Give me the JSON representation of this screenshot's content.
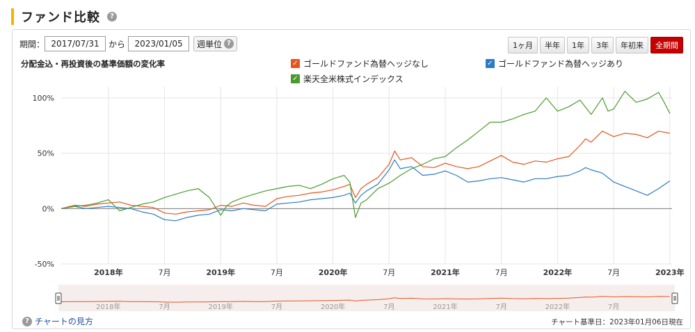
{
  "page": {
    "title": "ファンド比較",
    "help_glyph": "?"
  },
  "controls": {
    "period_label": "期間：",
    "start_date": "2017/07/31",
    "separator": "から",
    "end_date": "2023/01/05",
    "unit_button": "週単位",
    "ranges": [
      {
        "label": "1ヶ月",
        "active": false
      },
      {
        "label": "半年",
        "active": false
      },
      {
        "label": "1年",
        "active": false
      },
      {
        "label": "3年",
        "active": false
      },
      {
        "label": "年初来",
        "active": false
      },
      {
        "label": "全期間",
        "active": true
      }
    ]
  },
  "footer": {
    "how_to_read": "チャートの見方",
    "base_date": "チャート基準日：2023年01月06日現在"
  },
  "colors": {
    "gold_unhedged": "#e8541e",
    "gold_hedged": "#2b7bc5",
    "us_index": "#4a9a2c",
    "active_button": "#c40000",
    "title_accent": "#f5b400"
  },
  "chart_data": {
    "type": "line",
    "title": "分配金込・再投資後の基準価額の変化率",
    "x_unit": "year-fraction",
    "xlim": [
      2017.58,
      2023.02
    ],
    "ylim": [
      -50,
      110
    ],
    "y_ticks": [
      100,
      50,
      0,
      -50
    ],
    "y_tick_labels": [
      "100%",
      "50%",
      "0%",
      "-50%"
    ],
    "x_ticks": [
      {
        "x": 2018.0,
        "label": "2018年",
        "major": true
      },
      {
        "x": 2018.5,
        "label": "7月",
        "major": false
      },
      {
        "x": 2019.0,
        "label": "2019年",
        "major": true
      },
      {
        "x": 2019.5,
        "label": "7月",
        "major": false
      },
      {
        "x": 2020.0,
        "label": "2020年",
        "major": true
      },
      {
        "x": 2020.5,
        "label": "7月",
        "major": false
      },
      {
        "x": 2021.0,
        "label": "2021年",
        "major": true
      },
      {
        "x": 2021.5,
        "label": "7月",
        "major": false
      },
      {
        "x": 2022.0,
        "label": "2022年",
        "major": true
      },
      {
        "x": 2022.5,
        "label": "7月",
        "major": false
      },
      {
        "x": 2023.0,
        "label": "2023年",
        "major": true
      }
    ],
    "grid": true,
    "legend_position": "top",
    "series": [
      {
        "name": "ゴールドファンド為替ヘッジなし",
        "color": "#e8541e",
        "x": [
          2017.58,
          2017.7,
          2017.8,
          2017.9,
          2018.0,
          2018.1,
          2018.2,
          2018.3,
          2018.4,
          2018.5,
          2018.6,
          2018.7,
          2018.8,
          2018.9,
          2019.0,
          2019.1,
          2019.2,
          2019.3,
          2019.4,
          2019.5,
          2019.6,
          2019.7,
          2019.8,
          2019.9,
          2020.0,
          2020.1,
          2020.15,
          2020.2,
          2020.25,
          2020.3,
          2020.4,
          2020.5,
          2020.55,
          2020.6,
          2020.7,
          2020.8,
          2020.9,
          2021.0,
          2021.1,
          2021.2,
          2021.3,
          2021.4,
          2021.5,
          2021.6,
          2021.7,
          2021.8,
          2021.9,
          2022.0,
          2022.1,
          2022.2,
          2022.25,
          2022.3,
          2022.4,
          2022.5,
          2022.6,
          2022.7,
          2022.8,
          2022.9,
          2023.0
        ],
        "y": [
          0,
          3,
          2,
          4,
          5,
          6,
          3,
          2,
          1,
          -4,
          -5,
          -3,
          -2,
          -1,
          3,
          2,
          5,
          3,
          2,
          9,
          11,
          12,
          14,
          15,
          17,
          20,
          22,
          10,
          18,
          22,
          28,
          40,
          52,
          44,
          46,
          38,
          37,
          41,
          38,
          36,
          38,
          43,
          48,
          42,
          40,
          43,
          42,
          45,
          47,
          57,
          63,
          60,
          70,
          65,
          68,
          67,
          64,
          70,
          68
        ]
      },
      {
        "name": "ゴールドファンド為替ヘッジあり",
        "color": "#2b7bc5",
        "x": [
          2017.58,
          2017.7,
          2017.8,
          2017.9,
          2018.0,
          2018.1,
          2018.2,
          2018.3,
          2018.4,
          2018.5,
          2018.6,
          2018.7,
          2018.8,
          2018.9,
          2019.0,
          2019.1,
          2019.2,
          2019.3,
          2019.4,
          2019.5,
          2019.6,
          2019.7,
          2019.8,
          2019.9,
          2020.0,
          2020.1,
          2020.15,
          2020.2,
          2020.25,
          2020.3,
          2020.4,
          2020.5,
          2020.55,
          2020.6,
          2020.7,
          2020.8,
          2020.9,
          2021.0,
          2021.1,
          2021.2,
          2021.3,
          2021.4,
          2021.5,
          2021.6,
          2021.7,
          2021.8,
          2021.9,
          2022.0,
          2022.1,
          2022.2,
          2022.25,
          2022.3,
          2022.4,
          2022.5,
          2022.6,
          2022.7,
          2022.8,
          2022.9,
          2023.0
        ],
        "y": [
          0,
          2,
          0,
          1,
          2,
          1,
          0,
          -3,
          -5,
          -10,
          -11,
          -8,
          -6,
          -5,
          -1,
          -2,
          0,
          -1,
          -2,
          4,
          5,
          6,
          8,
          9,
          10,
          12,
          14,
          5,
          12,
          16,
          22,
          35,
          44,
          36,
          38,
          30,
          31,
          34,
          30,
          24,
          25,
          27,
          28,
          26,
          24,
          27,
          27,
          29,
          30,
          34,
          37,
          35,
          32,
          24,
          20,
          16,
          12,
          18,
          25
        ]
      },
      {
        "name": "楽天全米株式インデックス",
        "color": "#4a9a2c",
        "x": [
          2017.58,
          2017.7,
          2017.8,
          2017.9,
          2018.0,
          2018.1,
          2018.2,
          2018.3,
          2018.4,
          2018.5,
          2018.6,
          2018.7,
          2018.8,
          2018.9,
          2019.0,
          2019.05,
          2019.1,
          2019.2,
          2019.3,
          2019.4,
          2019.5,
          2019.6,
          2019.7,
          2019.8,
          2019.9,
          2020.0,
          2020.1,
          2020.15,
          2020.2,
          2020.25,
          2020.3,
          2020.4,
          2020.5,
          2020.6,
          2020.7,
          2020.8,
          2020.9,
          2021.0,
          2021.1,
          2021.2,
          2021.3,
          2021.4,
          2021.5,
          2021.6,
          2021.7,
          2021.8,
          2021.9,
          2022.0,
          2022.1,
          2022.2,
          2022.3,
          2022.4,
          2022.45,
          2022.5,
          2022.6,
          2022.7,
          2022.8,
          2022.9,
          2022.95,
          2023.0
        ],
        "y": [
          0,
          2,
          3,
          5,
          8,
          -2,
          1,
          4,
          6,
          10,
          13,
          16,
          18,
          10,
          -6,
          2,
          6,
          10,
          13,
          16,
          18,
          20,
          21,
          18,
          22,
          27,
          30,
          24,
          -8,
          5,
          8,
          18,
          23,
          30,
          36,
          40,
          45,
          47,
          55,
          62,
          70,
          78,
          78,
          81,
          85,
          88,
          100,
          88,
          92,
          98,
          85,
          100,
          88,
          90,
          106,
          96,
          99,
          105,
          96,
          86
        ]
      }
    ],
    "navigator": {
      "labels": [
        "2018年",
        "7月",
        "2019年",
        "7月",
        "2020年",
        "7月",
        "2021年",
        "7月",
        "2022年",
        "7月"
      ]
    }
  }
}
